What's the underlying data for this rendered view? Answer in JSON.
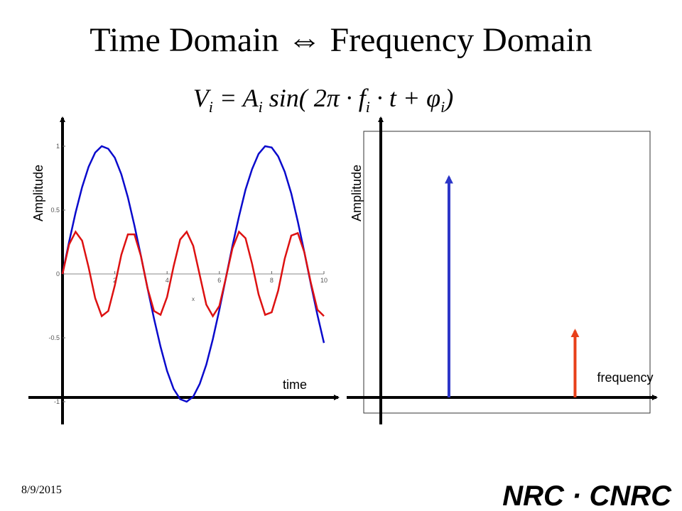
{
  "slide": {
    "title": "Time Domain ⇔ Frequency Domain",
    "formula_parts": [
      "V",
      "i",
      " = A",
      "i",
      " sin( 2π · f",
      "i",
      " · t + φ",
      "i",
      ")"
    ],
    "date": "8/9/2015",
    "logo": "NRC · CNRC"
  },
  "chart_data": [
    {
      "type": "line",
      "ylabel": "Amplitude",
      "xlabel": "time",
      "plot_xlabel": "x",
      "x": [
        0,
        0.25,
        0.5,
        0.75,
        1,
        1.25,
        1.5,
        1.75,
        2,
        2.25,
        2.5,
        2.75,
        3,
        3.25,
        3.5,
        3.75,
        4,
        4.25,
        4.5,
        4.75,
        5,
        5.25,
        5.5,
        5.75,
        6,
        6.25,
        6.5,
        6.75,
        7,
        7.25,
        7.5,
        7.75,
        8,
        8.25,
        8.5,
        8.75,
        9,
        9.25,
        9.5,
        9.75,
        10
      ],
      "series": [
        {
          "color": "#0a0acc",
          "values": [
            0,
            0.25,
            0.48,
            0.68,
            0.84,
            0.95,
            1,
            0.98,
            0.91,
            0.78,
            0.6,
            0.38,
            0.14,
            -0.11,
            -0.35,
            -0.57,
            -0.76,
            -0.9,
            -0.98,
            -1,
            -0.96,
            -0.86,
            -0.71,
            -0.51,
            -0.28,
            -0.03,
            0.22,
            0.45,
            0.66,
            0.82,
            0.94,
            1,
            0.99,
            0.92,
            0.8,
            0.63,
            0.41,
            0.17,
            -0.08,
            -0.32,
            -0.54
          ]
        },
        {
          "color": "#dd1111",
          "values": [
            0,
            0.23,
            0.33,
            0.26,
            0.05,
            -0.19,
            -0.33,
            -0.29,
            -0.09,
            0.15,
            0.31,
            0.31,
            0.14,
            -0.11,
            -0.29,
            -0.32,
            -0.18,
            0.06,
            0.27,
            0.33,
            0.22,
            -0.01,
            -0.24,
            -0.33,
            -0.25,
            -0.03,
            0.2,
            0.33,
            0.28,
            0.08,
            -0.16,
            -0.32,
            -0.3,
            -0.13,
            0.12,
            0.3,
            0.32,
            0.17,
            -0.07,
            -0.28,
            -0.33
          ]
        }
      ],
      "xlim": [
        0,
        10
      ],
      "xticks": [
        2,
        4,
        6,
        8,
        10
      ],
      "ylim": [
        -1,
        1
      ],
      "yticks": [
        -1,
        -0.5,
        0,
        0.5,
        1
      ]
    },
    {
      "type": "stem",
      "ylabel": "Amplitude",
      "xlabel": "frequency",
      "x": [
        1,
        2.85
      ],
      "values": [
        1,
        0.32
      ],
      "colors": [
        "#2b35c8",
        "#e8401a"
      ],
      "xlim": [
        0,
        3.95
      ],
      "ylim": [
        0,
        1.2
      ]
    }
  ]
}
